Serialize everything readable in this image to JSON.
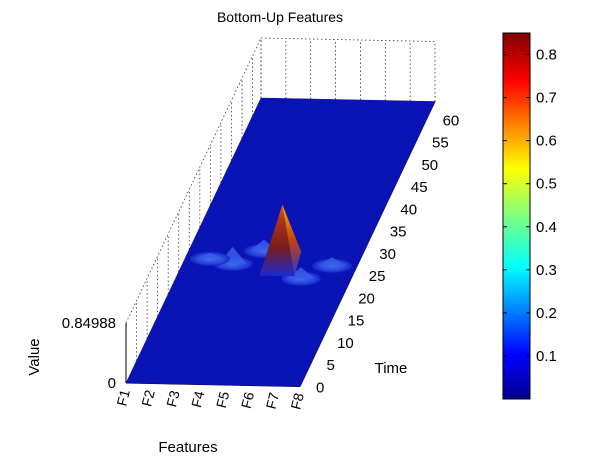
{
  "chart_data": {
    "type": "surface",
    "title": "Bottom-Up Features",
    "xlabel": "Features",
    "ylabel": "Time",
    "zlabel": "Value",
    "x_categories": [
      "F1",
      "F2",
      "F3",
      "F4",
      "F5",
      "F6",
      "F7",
      "F8"
    ],
    "y_ticks": [
      0,
      5,
      10,
      15,
      20,
      25,
      30,
      35,
      40,
      45,
      50,
      55,
      60
    ],
    "ylim": [
      0,
      64
    ],
    "z_ticks": [
      "0",
      "0.84988"
    ],
    "zlim": [
      0,
      0.84988
    ],
    "colormap": "jet",
    "colorbar": {
      "ticks": [
        "0.1",
        "0.2",
        "0.3",
        "0.4",
        "0.5",
        "0.6",
        "0.7",
        "0.8"
      ],
      "range": [
        0,
        0.85
      ]
    },
    "baseline_value": 0,
    "peaks": [
      {
        "feature": "F5",
        "time": 27,
        "value": 0.85
      },
      {
        "feature": "F3",
        "time": 27,
        "value": 0.06
      },
      {
        "feature": "F4",
        "time": 30,
        "value": 0.04
      },
      {
        "feature": "F6",
        "time": 24,
        "value": 0.04
      },
      {
        "feature": "F7",
        "time": 27,
        "value": 0.03
      },
      {
        "feature": "F2",
        "time": 28,
        "value": 0.02
      }
    ],
    "grid": true,
    "legend": "colorbar-right"
  },
  "colors": {
    "surface_base": "#0a14b4",
    "colorbar_top": "#800000",
    "colorbar_bottom": "#00008f"
  }
}
